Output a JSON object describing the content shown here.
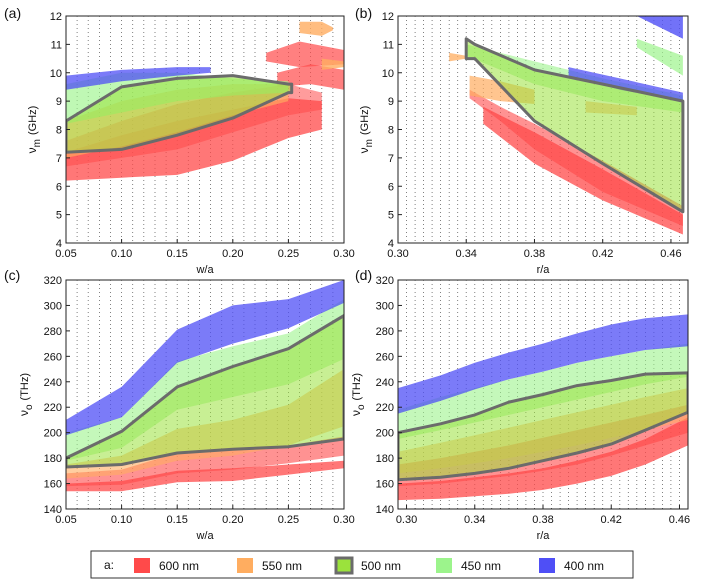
{
  "colors": {
    "600nm": "#ff4a4a",
    "550nm": "#ffad60",
    "500nm": "#9be23c",
    "450nm": "#9cf48c",
    "400nm": "#4f4ff6",
    "outline": "#6b6b6b"
  },
  "legend": {
    "prefix": "a:",
    "items": [
      {
        "label": "600 nm",
        "color_key": "600nm"
      },
      {
        "label": "550 nm",
        "color_key": "550nm"
      },
      {
        "label": "500 nm",
        "color_key": "500nm"
      },
      {
        "label": "450 nm",
        "color_key": "450nm"
      },
      {
        "label": "400 nm",
        "color_key": "400nm"
      }
    ]
  },
  "chart_data": [
    {
      "type": "area",
      "panel": "(a)",
      "xlabel": "w/a",
      "ylabel_main": "ν",
      "ylabel_sub": "m",
      "ylabel_unit": "(GHz)",
      "xlim": [
        0.05,
        0.3
      ],
      "ylim": [
        4,
        12
      ],
      "xticks": [
        "0.05",
        "0.10",
        "0.15",
        "0.20",
        "0.25",
        "0.30"
      ],
      "yticks": [
        "4",
        "5",
        "6",
        "7",
        "8",
        "9",
        "10",
        "11",
        "12"
      ],
      "grid_x_step": 0.01,
      "grid_y_step": 0.2,
      "series": [
        {
          "name": "600 nm",
          "color_key": "600nm",
          "opacity": 0.75,
          "x": [
            0.05,
            0.1,
            0.15,
            0.2,
            0.25,
            0.28
          ],
          "upper": [
            7.2,
            7.8,
            8.3,
            8.7,
            9.1,
            9.0
          ],
          "lower": [
            6.2,
            6.3,
            6.4,
            6.9,
            7.7,
            8.0
          ]
        },
        {
          "name": "600 nm",
          "color_key": "600nm",
          "opacity": 0.55,
          "x": [
            0.05,
            0.1,
            0.15,
            0.2,
            0.25,
            0.28
          ],
          "upper": [
            7.6,
            8.3,
            8.9,
            9.3,
            9.6,
            9.3
          ],
          "lower": [
            6.7,
            7.0,
            7.3,
            7.9,
            8.5,
            8.7
          ]
        },
        {
          "name": "600 nm",
          "color_key": "600nm",
          "opacity": 0.7,
          "x": [
            0.23,
            0.26,
            0.3
          ],
          "upper": [
            10.7,
            11.1,
            10.8
          ],
          "lower": [
            10.4,
            10.2,
            10.3
          ]
        },
        {
          "name": "600 nm",
          "color_key": "600nm",
          "opacity": 0.7,
          "x": [
            0.24,
            0.27,
            0.3
          ],
          "upper": [
            10.0,
            10.3,
            10.1
          ],
          "lower": [
            9.5,
            9.6,
            9.4
          ]
        },
        {
          "name": "550 nm",
          "color_key": "550nm",
          "opacity": 0.65,
          "x": [
            0.05,
            0.1,
            0.15,
            0.2,
            0.25
          ],
          "upper": [
            8.3,
            9.0,
            9.4,
            9.6,
            9.6
          ],
          "lower": [
            7.0,
            7.4,
            7.9,
            8.5,
            9.0
          ]
        },
        {
          "name": "550 nm",
          "color_key": "550nm",
          "opacity": 0.8,
          "x": [
            0.26,
            0.28,
            0.29
          ],
          "upper": [
            11.8,
            11.8,
            11.6
          ],
          "lower": [
            11.4,
            11.3,
            11.5
          ]
        },
        {
          "name": "550 nm",
          "color_key": "550nm",
          "opacity": 0.8,
          "x": [
            0.28,
            0.3
          ],
          "upper": [
            10.5,
            10.4
          ],
          "lower": [
            10.1,
            10.2
          ]
        },
        {
          "name": "450 nm",
          "color_key": "450nm",
          "opacity": 0.65,
          "x": [
            0.05,
            0.1,
            0.15,
            0.2,
            0.25
          ],
          "upper": [
            9.6,
            10.0,
            10.0,
            9.8,
            9.7
          ],
          "lower": [
            8.2,
            8.6,
            9.0,
            9.2,
            9.3
          ]
        },
        {
          "name": "400 nm",
          "color_key": "400nm",
          "opacity": 0.75,
          "x": [
            0.05,
            0.1,
            0.15,
            0.18
          ],
          "upper": [
            9.9,
            10.1,
            10.2,
            10.2
          ],
          "lower": [
            9.4,
            9.7,
            9.9,
            10.0
          ]
        }
      ],
      "outline": {
        "name": "500 nm",
        "x_top": [
          0.05,
          0.1,
          0.15,
          0.2,
          0.25,
          0.253
        ],
        "top": [
          8.3,
          9.5,
          9.8,
          9.9,
          9.6,
          9.6
        ],
        "x_bottom": [
          0.05,
          0.1,
          0.15,
          0.2,
          0.25,
          0.253
        ],
        "bottom": [
          7.2,
          7.3,
          7.8,
          8.4,
          9.3,
          9.3
        ]
      }
    },
    {
      "type": "area",
      "panel": "(b)",
      "xlabel": "r/a",
      "ylabel_main": "ν",
      "ylabel_sub": "m",
      "ylabel_unit": "(GHz)",
      "xlim": [
        0.3,
        0.47
      ],
      "ylim": [
        4,
        12
      ],
      "xticks": [
        "0.30",
        "0.34",
        "0.38",
        "0.42",
        "0.46"
      ],
      "yticks": [
        "4",
        "5",
        "6",
        "7",
        "8",
        "9",
        "10",
        "11",
        "12"
      ],
      "grid_x_step": 0.005,
      "grid_y_step": 0.2,
      "series": [
        {
          "name": "600 nm",
          "color_key": "600nm",
          "opacity": 0.75,
          "x": [
            0.35,
            0.38,
            0.42,
            0.467
          ],
          "upper": [
            8.8,
            7.9,
            6.6,
            5.0
          ],
          "lower": [
            8.2,
            6.8,
            5.5,
            4.3
          ]
        },
        {
          "name": "600 nm",
          "color_key": "600nm",
          "opacity": 0.6,
          "x": [
            0.342,
            0.36,
            0.38,
            0.42,
            0.467
          ],
          "upper": [
            9.4,
            8.8,
            8.2,
            6.9,
            5.3
          ],
          "lower": [
            9.1,
            8.3,
            7.3,
            5.8,
            4.6
          ]
        },
        {
          "name": "550 nm",
          "color_key": "550nm",
          "opacity": 0.75,
          "x": [
            0.33,
            0.34
          ],
          "upper": [
            10.7,
            10.6
          ],
          "lower": [
            10.4,
            10.5
          ]
        },
        {
          "name": "550 nm",
          "color_key": "550nm",
          "opacity": 0.7,
          "x": [
            0.342,
            0.36,
            0.38
          ],
          "upper": [
            9.9,
            9.7,
            9.4
          ],
          "lower": [
            9.2,
            9.0,
            8.9
          ]
        },
        {
          "name": "550 nm",
          "color_key": "550nm",
          "opacity": 0.6,
          "x": [
            0.41,
            0.44
          ],
          "upper": [
            9.0,
            8.8
          ],
          "lower": [
            8.6,
            8.5
          ]
        },
        {
          "name": "450 nm",
          "color_key": "450nm",
          "opacity": 0.6,
          "x": [
            0.34,
            0.38,
            0.42,
            0.467
          ],
          "upper": [
            11.0,
            10.4,
            9.8,
            9.2
          ],
          "lower": [
            10.6,
            9.6,
            9.0,
            8.6
          ]
        },
        {
          "name": "450 nm",
          "color_key": "450nm",
          "opacity": 0.7,
          "x": [
            0.44,
            0.467
          ],
          "upper": [
            11.2,
            10.6
          ],
          "lower": [
            10.9,
            9.9
          ]
        },
        {
          "name": "400 nm",
          "color_key": "400nm",
          "opacity": 0.75,
          "x": [
            0.4,
            0.43,
            0.467
          ],
          "upper": [
            10.2,
            9.8,
            9.3
          ],
          "lower": [
            9.9,
            9.4,
            9.0
          ]
        },
        {
          "name": "400 nm",
          "color_key": "400nm",
          "opacity": 0.8,
          "x": [
            0.44,
            0.467
          ],
          "upper": [
            12.0,
            12.0
          ],
          "lower": [
            12.0,
            11.2
          ]
        }
      ],
      "outline": {
        "name": "500 nm",
        "x_top": [
          0.34,
          0.345,
          0.38,
          0.42,
          0.467
        ],
        "top": [
          11.2,
          11.0,
          10.1,
          9.6,
          9.0
        ],
        "x_bottom": [
          0.34,
          0.345,
          0.38,
          0.42,
          0.467
        ],
        "bottom": [
          10.5,
          10.5,
          8.3,
          6.8,
          5.1
        ]
      }
    },
    {
      "type": "area",
      "panel": "(c)",
      "xlabel": "w/a",
      "ylabel_main": "ν",
      "ylabel_sub": "o",
      "ylabel_unit": "(THz)",
      "xlim": [
        0.05,
        0.3
      ],
      "ylim": [
        140,
        320
      ],
      "xticks": [
        "0.05",
        "0.10",
        "0.15",
        "0.20",
        "0.25",
        "0.30"
      ],
      "yticks": [
        "140",
        "160",
        "180",
        "200",
        "220",
        "240",
        "260",
        "280",
        "300",
        "320"
      ],
      "grid_x_step": 0.01,
      "grid_y_step": 5,
      "series": [
        {
          "name": "600 nm",
          "color_key": "600nm",
          "opacity": 0.75,
          "x": [
            0.05,
            0.1,
            0.15,
            0.2,
            0.25,
            0.3
          ],
          "upper": [
            160,
            162,
            170,
            172,
            175,
            178
          ],
          "lower": [
            154,
            154,
            161,
            162,
            167,
            172
          ]
        },
        {
          "name": "600 nm",
          "color_key": "600nm",
          "opacity": 0.6,
          "x": [
            0.05,
            0.1,
            0.15,
            0.2,
            0.25,
            0.3
          ],
          "upper": [
            168,
            171,
            184,
            187,
            190,
            197
          ],
          "lower": [
            158,
            159,
            168,
            171,
            176,
            182
          ]
        },
        {
          "name": "550 nm",
          "color_key": "550nm",
          "opacity": 0.6,
          "x": [
            0.05,
            0.1,
            0.15,
            0.2,
            0.25,
            0.3
          ],
          "upper": [
            175,
            182,
            203,
            210,
            222,
            250
          ],
          "lower": [
            164,
            167,
            178,
            182,
            190,
            205
          ]
        },
        {
          "name": "450 nm",
          "color_key": "450nm",
          "opacity": 0.6,
          "x": [
            0.05,
            0.1,
            0.15,
            0.2,
            0.25,
            0.3
          ],
          "upper": [
            200,
            212,
            256,
            268,
            278,
            305
          ],
          "lower": [
            178,
            188,
            218,
            228,
            238,
            258
          ]
        },
        {
          "name": "400 nm",
          "color_key": "400nm",
          "opacity": 0.75,
          "x": [
            0.05,
            0.1,
            0.15,
            0.2,
            0.25,
            0.3
          ],
          "upper": [
            210,
            236,
            281,
            300,
            305,
            320
          ],
          "lower": [
            198,
            212,
            255,
            270,
            282,
            302
          ]
        }
      ],
      "outline": {
        "name": "500 nm",
        "x_top": [
          0.05,
          0.1,
          0.15,
          0.2,
          0.25,
          0.3
        ],
        "top": [
          180,
          201,
          236,
          252,
          266,
          292
        ],
        "x_bottom": [
          0.05,
          0.1,
          0.15,
          0.2,
          0.25,
          0.3
        ],
        "bottom": [
          173,
          175,
          184,
          187,
          189,
          195
        ]
      }
    },
    {
      "type": "area",
      "panel": "(d)",
      "xlabel": "r/a",
      "ylabel_main": "ν",
      "ylabel_sub": "o",
      "ylabel_unit": "(THz)",
      "xlim": [
        0.295,
        0.465
      ],
      "ylim": [
        140,
        320
      ],
      "xticks": [
        "0.30",
        "0.34",
        "0.38",
        "0.42",
        "0.46"
      ],
      "yticks": [
        "140",
        "160",
        "180",
        "200",
        "220",
        "240",
        "260",
        "280",
        "300",
        "320"
      ],
      "grid_x_step": 0.005,
      "grid_y_step": 5,
      "series": [
        {
          "name": "600 nm",
          "color_key": "600nm",
          "opacity": 0.75,
          "x": [
            0.295,
            0.32,
            0.34,
            0.36,
            0.38,
            0.4,
            0.42,
            0.44,
            0.465
          ],
          "upper": [
            160,
            162,
            165,
            168,
            172,
            178,
            185,
            195,
            212
          ],
          "lower": [
            147,
            148,
            150,
            152,
            155,
            160,
            166,
            175,
            190
          ]
        },
        {
          "name": "600 nm",
          "color_key": "600nm",
          "opacity": 0.6,
          "x": [
            0.295,
            0.32,
            0.34,
            0.36,
            0.38,
            0.4,
            0.42,
            0.44,
            0.465
          ],
          "upper": [
            175,
            180,
            185,
            190,
            196,
            202,
            208,
            214,
            222
          ],
          "lower": [
            158,
            160,
            163,
            166,
            170,
            175,
            182,
            190,
            200
          ]
        },
        {
          "name": "550 nm",
          "color_key": "550nm",
          "opacity": 0.55,
          "x": [
            0.295,
            0.32,
            0.34,
            0.36,
            0.38,
            0.4,
            0.42,
            0.44,
            0.465
          ],
          "upper": [
            185,
            192,
            198,
            204,
            210,
            216,
            222,
            228,
            235
          ],
          "lower": [
            168,
            172,
            176,
            180,
            185,
            190,
            196,
            202,
            210
          ]
        },
        {
          "name": "450 nm",
          "color_key": "450nm",
          "opacity": 0.6,
          "x": [
            0.295,
            0.32,
            0.34,
            0.36,
            0.38,
            0.4,
            0.42,
            0.44,
            0.465
          ],
          "upper": [
            218,
            228,
            235,
            242,
            248,
            255,
            260,
            265,
            270
          ],
          "lower": [
            195,
            202,
            208,
            214,
            220,
            226,
            232,
            238,
            244
          ]
        },
        {
          "name": "400 nm",
          "color_key": "400nm",
          "opacity": 0.75,
          "x": [
            0.295,
            0.32,
            0.34,
            0.36,
            0.38,
            0.4,
            0.42,
            0.44,
            0.465
          ],
          "upper": [
            235,
            245,
            255,
            263,
            270,
            278,
            285,
            290,
            293
          ],
          "lower": [
            215,
            225,
            234,
            242,
            248,
            255,
            260,
            265,
            268
          ]
        }
      ],
      "outline": {
        "name": "500 nm",
        "x_top": [
          0.295,
          0.32,
          0.34,
          0.36,
          0.38,
          0.4,
          0.42,
          0.44,
          0.465
        ],
        "top": [
          200,
          207,
          214,
          224,
          230,
          237,
          241,
          246,
          247
        ],
        "x_bottom": [
          0.295,
          0.32,
          0.34,
          0.36,
          0.38,
          0.4,
          0.42,
          0.44,
          0.465
        ],
        "bottom": [
          163,
          165,
          168,
          172,
          178,
          184,
          191,
          202,
          216
        ]
      }
    }
  ]
}
